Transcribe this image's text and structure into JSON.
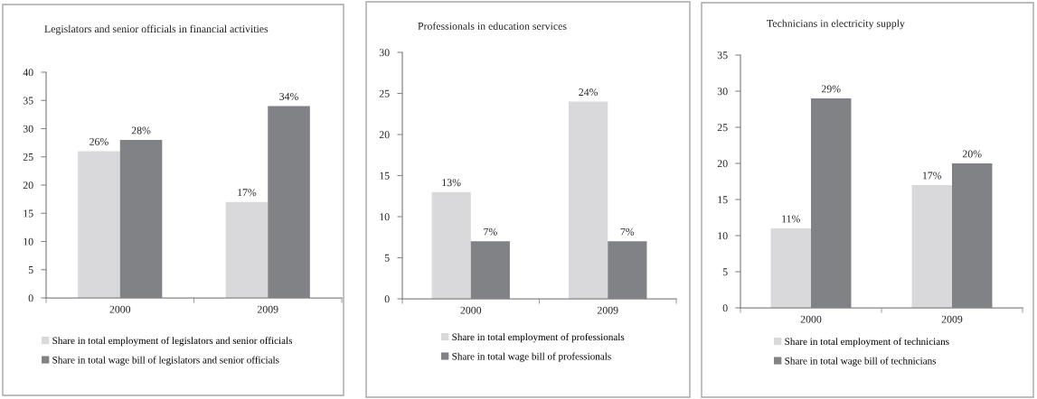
{
  "chart_data": [
    {
      "type": "bar",
      "title": "Legislators and senior officials in financial activities",
      "categories": [
        "2000",
        "2009"
      ],
      "series": [
        {
          "name": "Share in total employment of legislators and senior officials",
          "color": "#d9d9db",
          "values": [
            26,
            17
          ],
          "value_labels": [
            "26%",
            "17%"
          ]
        },
        {
          "name": "Share in total wage bill of legislators and senior officials",
          "color": "#818286",
          "values": [
            28,
            34
          ],
          "value_labels": [
            "28%",
            "34%"
          ]
        }
      ],
      "ylim": [
        0,
        40
      ],
      "yticks": [
        0,
        5,
        10,
        15,
        20,
        25,
        30,
        35,
        40
      ],
      "legend": "bottom",
      "grid": false
    },
    {
      "type": "bar",
      "title": "Professionals in education services",
      "categories": [
        "2000",
        "2009"
      ],
      "series": [
        {
          "name": "Share in total employment of professionals",
          "color": "#d9d9db",
          "values": [
            13,
            24
          ],
          "value_labels": [
            "13%",
            "24%"
          ]
        },
        {
          "name": "Share in total wage bill of professionals",
          "color": "#818286",
          "values": [
            7,
            7
          ],
          "value_labels": [
            "7%",
            "7%"
          ]
        }
      ],
      "ylim": [
        0,
        30
      ],
      "yticks": [
        0,
        5,
        10,
        15,
        20,
        25,
        30
      ],
      "legend": "bottom",
      "grid": false
    },
    {
      "type": "bar",
      "title": "Technicians in electricity supply",
      "categories": [
        "2000",
        "2009"
      ],
      "series": [
        {
          "name": "Share in total employment of technicians",
          "color": "#d9d9db",
          "values": [
            11,
            17
          ],
          "value_labels": [
            "11%",
            "17%"
          ]
        },
        {
          "name": "Share in total wage bill of technicians",
          "color": "#818286",
          "values": [
            29,
            20
          ],
          "value_labels": [
            "29%",
            "20%"
          ]
        }
      ],
      "ylim": [
        0,
        35
      ],
      "yticks": [
        0,
        5,
        10,
        15,
        20,
        25,
        30,
        35
      ],
      "legend": "bottom",
      "grid": false
    }
  ]
}
